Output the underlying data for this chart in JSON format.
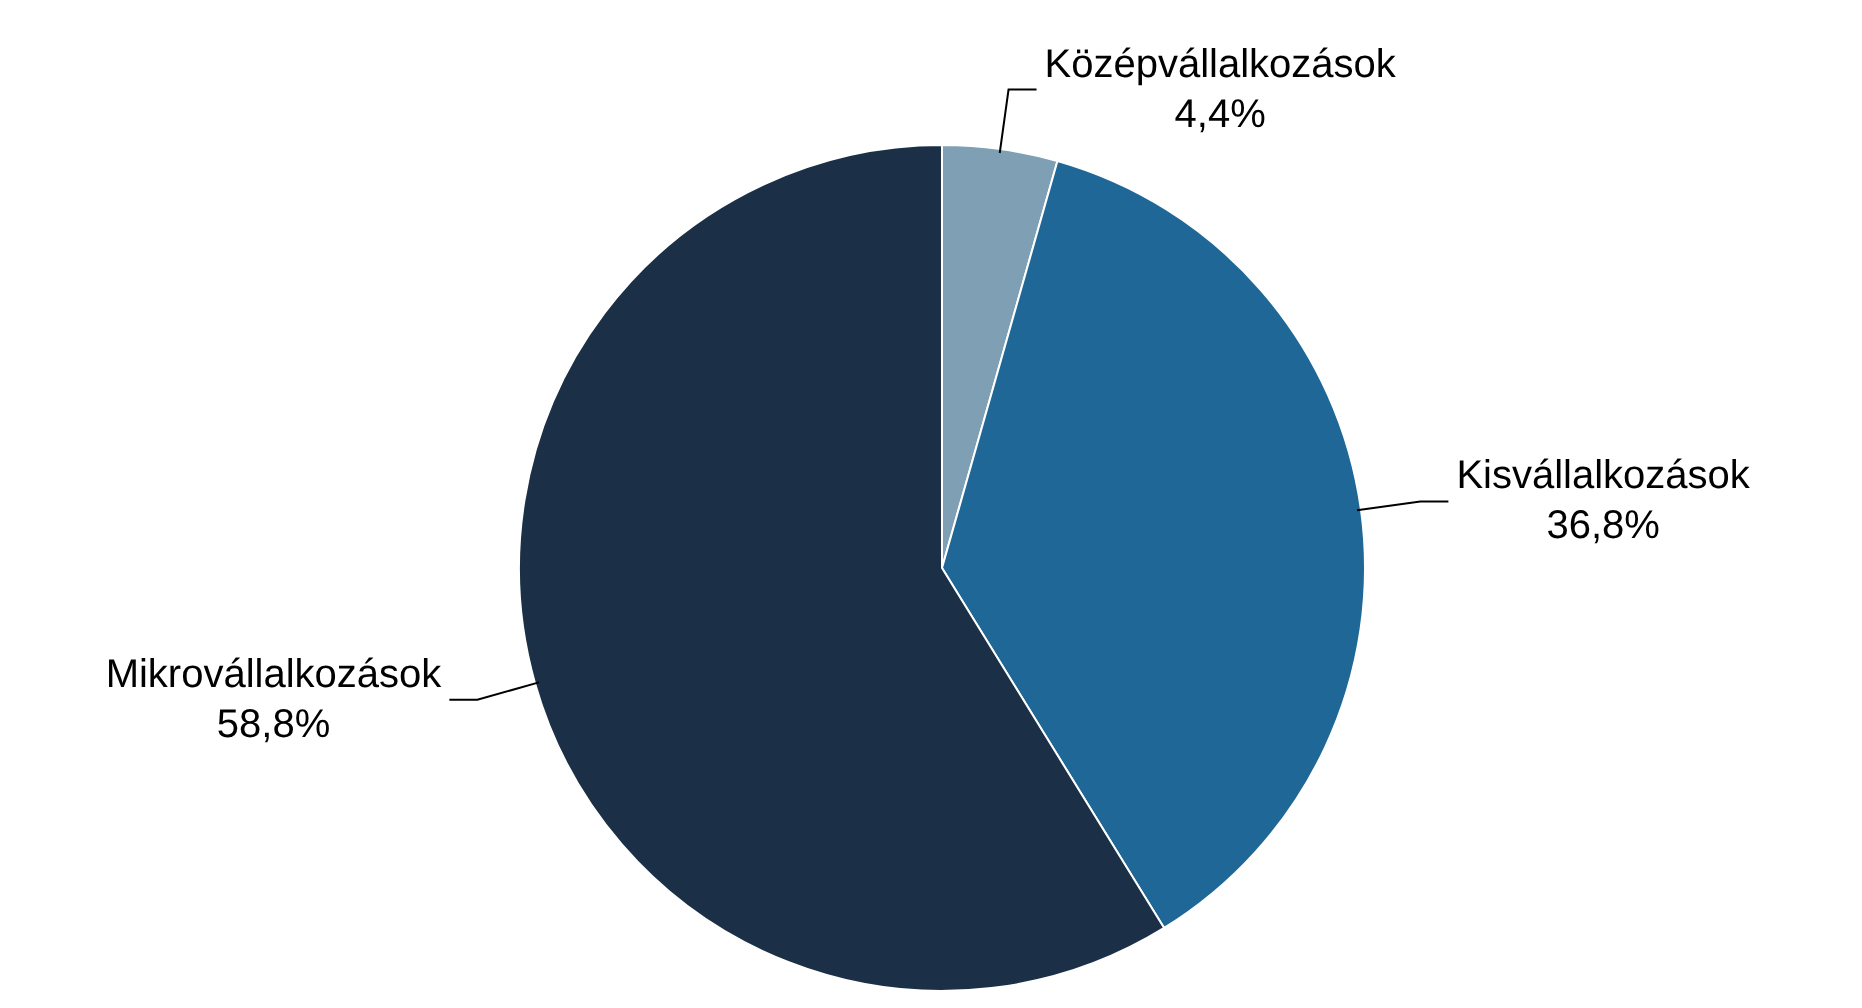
{
  "chart_data": {
    "type": "pie",
    "categories": [
      "Középvállalkozások",
      "Kisvállalkozások",
      "Mikrovállalkozások"
    ],
    "values": [
      4.4,
      36.8,
      58.8
    ],
    "colors": [
      "#7fa0b4",
      "#1f6796",
      "#1b3046"
    ],
    "value_labels": [
      "4,4%",
      "36,8%",
      "58,8%"
    ],
    "legend": false
  }
}
